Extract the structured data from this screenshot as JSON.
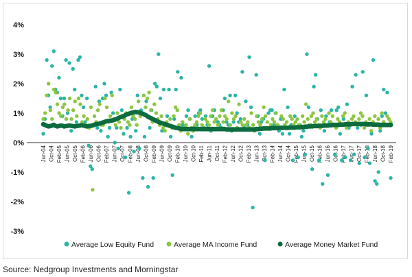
{
  "chart_data": {
    "type": "scatter",
    "ylim": [
      -3,
      4
    ],
    "y_ticks": [
      "4%",
      "3%",
      "2%",
      "1%",
      "0%",
      "-1%",
      "-2%",
      "-3%"
    ],
    "y_tick_values": [
      4,
      3,
      2,
      1,
      0,
      -1,
      -2,
      -3
    ],
    "x_tick_labels": [
      "Jun-04",
      "Oct-04",
      "Feb-05",
      "Jun-05",
      "Oct-05",
      "Feb-06",
      "Jun-06",
      "Oct-06",
      "Feb-07",
      "Jun-07",
      "Oct-07",
      "Feb-08",
      "Jun-08",
      "Oct-08",
      "Feb-09",
      "Jun-09",
      "Oct-09",
      "Feb-10",
      "Jun-10",
      "Oct-10",
      "Feb-11",
      "Jun-11",
      "Oct-11",
      "Feb-12",
      "Jun-12",
      "Oct-12",
      "Feb-13",
      "Jun-13",
      "Oct-13",
      "Feb-14",
      "Jun-14",
      "Oct-14",
      "Feb-15",
      "Jun-15",
      "Oct-15",
      "Feb-16",
      "Jun-16",
      "Oct-16",
      "Feb-17",
      "Jun-17",
      "Oct-17",
      "Feb-18",
      "Jun-18",
      "Oct-18",
      "Feb-19"
    ],
    "legend_position": "bottom",
    "grid": false,
    "series": [
      {
        "name": "Average Low Equity Fund",
        "color": "#2bb5a6",
        "values": [
          0.3,
          0.8,
          2.8,
          1.6,
          1.2,
          2.6,
          3.1,
          1.8,
          1.7,
          2.2,
          1.5,
          0.9,
          1.5,
          2.8,
          1.0,
          2.7,
          0.4,
          2.5,
          1.8,
          0.7,
          2.8,
          2.9,
          1.6,
          1.2,
          0.7,
          1.5,
          -0.1,
          -0.8,
          -0.9,
          0.6,
          1.9,
          0.5,
          1.4,
          0.4,
          1.5,
          2.0,
          1.6,
          0.2,
          0.5,
          1.7,
          1.0,
          0.0,
          0.5,
          -0.2,
          1.8,
          1.1,
          0.3,
          -0.5,
          0.5,
          -1.7,
          0.2,
          0.8,
          -0.3,
          0.4,
          1.6,
          -0.2,
          1.1,
          -1.2,
          0.2,
          1.4,
          -1.5,
          0.5,
          1.1,
          -1.2,
          2.0,
          1.9,
          3.0,
          1.5,
          0.4,
          1.8,
          0.6,
          0.9,
          1.8,
          0.2,
          -1.1,
          0.8,
          1.8,
          2.4,
          0.6,
          2.2,
          0.6,
          0.5,
          0.9,
          1.1,
          0.8,
          0.2,
          0.5,
          0.9,
          0.6,
          1.0,
          1.1,
          0.8,
          0.5,
          0.9,
          0.6,
          2.6,
          0.4,
          0.9,
          1.1,
          0.8,
          0.7,
          0.6,
          0.5,
          1.1,
          1.5,
          0.7,
          0.6,
          1.6,
          0.4,
          0.7,
          1.6,
          1.0,
          0.7,
          0.8,
          2.4,
          0.5,
          1.4,
          0.6,
          2.9,
          1.2,
          -2.2,
          0.4,
          2.3,
          0.9,
          0.3,
          0.7,
          0.8,
          -0.6,
          0.5,
          1.0,
          1.1,
          1.1,
          0.6,
          1.0,
          0.6,
          0.4,
          0.8,
          0.3,
          1.8,
          0.5,
          1.2,
          0.3,
          0.6,
          -0.6,
          0.9,
          0.5,
          -0.5,
          0.6,
          0.2,
          0.4,
          -0.4,
          3.0,
          1.2,
          0.6,
          -0.9,
          1.9,
          2.3,
          0.8,
          -0.6,
          1.1,
          -1.4,
          0.4,
          0.9,
          -1.1,
          0.7,
          1.1,
          0.6,
          -0.4,
          1.1,
          1.2,
          0.3,
          -0.6,
          0.8,
          -0.5,
          1.3,
          0.5,
          -0.6,
          1.9,
          -0.4,
          2.3,
          0.5,
          -0.7,
          0.6,
          2.4,
          -0.5,
          1.6,
          -0.2,
          -0.7,
          0.3,
          2.8,
          -1.3,
          -1.4,
          -1.0,
          0.4,
          0.9,
          1.8,
          1.0,
          1.7,
          0.6,
          -1.2
        ]
      },
      {
        "name": "Average MA Income Fund",
        "color": "#8cc63f",
        "values": [
          0.8,
          1.0,
          1.6,
          2.0,
          1.1,
          0.8,
          1.8,
          1.7,
          1.3,
          1.0,
          0.9,
          1.2,
          1.3,
          0.8,
          1.1,
          1.5,
          0.8,
          1.1,
          1.4,
          0.9,
          1.5,
          1.3,
          0.7,
          0.9,
          0.6,
          0.8,
          0.5,
          1.2,
          -1.6,
          0.9,
          0.7,
          1.1,
          1.3,
          0.6,
          0.6,
          1.5,
          1.2,
          0.7,
          0.9,
          1.6,
          0.8,
          0.6,
          1.0,
          0.7,
          0.5,
          0.9,
          0.8,
          1.0,
          0.7,
          0.6,
          1.2,
          0.9,
          0.8,
          0.6,
          1.4,
          0.9,
          1.0,
          1.6,
          1.2,
          1.5,
          1.7,
          1.1,
          0.7,
          1.3,
          1.0,
          0.8,
          0.6,
          0.9,
          0.5,
          0.4,
          0.7,
          0.6,
          0.8,
          0.5,
          0.9,
          1.2,
          1.1,
          0.6,
          0.4,
          0.7,
          0.5,
          0.6,
          0.3,
          0.8,
          0.5,
          0.4,
          0.6,
          0.7,
          0.9,
          1.0,
          0.6,
          0.5,
          0.8,
          0.7,
          0.6,
          0.9,
          1.1,
          0.7,
          0.8,
          0.6,
          0.9,
          1.1,
          0.7,
          0.9,
          0.8,
          1.4,
          0.6,
          1.0,
          0.8,
          0.9,
          0.5,
          1.3,
          0.7,
          0.6,
          0.8,
          0.6,
          0.7,
          0.5,
          1.0,
          0.6,
          0.4,
          0.9,
          0.7,
          0.6,
          0.8,
          1.2,
          0.9,
          0.7,
          0.5,
          0.6,
          0.8,
          0.7,
          1.0,
          0.6,
          0.5,
          0.9,
          0.8,
          0.6,
          0.7,
          0.5,
          0.9,
          0.8,
          0.6,
          0.7,
          0.8,
          0.6,
          0.5,
          0.9,
          0.7,
          1.3,
          0.8,
          0.6,
          0.9,
          1.0,
          0.7,
          0.8,
          0.6,
          0.5,
          0.9,
          0.7,
          0.8,
          0.6,
          1.0,
          0.7,
          0.9,
          0.6,
          0.5,
          0.8,
          0.7,
          0.6,
          0.9,
          1.0,
          0.5,
          0.7,
          0.6,
          0.8,
          0.9,
          0.7,
          0.6,
          0.8,
          1.0,
          0.9,
          0.5,
          0.7,
          0.6,
          0.8,
          0.4,
          0.7,
          0.9,
          0.6,
          0.8,
          0.5,
          1.0,
          0.7,
          0.6,
          0.9,
          0.8,
          0.7
        ]
      },
      {
        "name": "Average Money Market Fund",
        "color": "#0c6b3f",
        "values": [
          0.62,
          0.6,
          0.57,
          0.55,
          0.56,
          0.58,
          0.6,
          0.57,
          0.55,
          0.56,
          0.58,
          0.57,
          0.55,
          0.56,
          0.57,
          0.58,
          0.57,
          0.56,
          0.55,
          0.56,
          0.57,
          0.58,
          0.59,
          0.58,
          0.56,
          0.55,
          0.56,
          0.57,
          0.58,
          0.6,
          0.62,
          0.63,
          0.64,
          0.66,
          0.68,
          0.7,
          0.72,
          0.73,
          0.74,
          0.75,
          0.76,
          0.78,
          0.8,
          0.83,
          0.86,
          0.88,
          0.9,
          0.93,
          0.96,
          0.98,
          1.0,
          1.02,
          1.03,
          1.04,
          1.03,
          1.02,
          1.0,
          0.98,
          0.95,
          0.92,
          0.88,
          0.85,
          0.82,
          0.79,
          0.76,
          0.73,
          0.7,
          0.68,
          0.66,
          0.64,
          0.62,
          0.6,
          0.58,
          0.56,
          0.54,
          0.52,
          0.5,
          0.49,
          0.48,
          0.47,
          0.46,
          0.46,
          0.46,
          0.46,
          0.46,
          0.46,
          0.46,
          0.46,
          0.46,
          0.46,
          0.46,
          0.46,
          0.46,
          0.46,
          0.46,
          0.46,
          0.46,
          0.46,
          0.46,
          0.46,
          0.46,
          0.46,
          0.46,
          0.46,
          0.46,
          0.45,
          0.45,
          0.45,
          0.45,
          0.45,
          0.45,
          0.45,
          0.45,
          0.45,
          0.45,
          0.45,
          0.45,
          0.45,
          0.45,
          0.45,
          0.45,
          0.45,
          0.46,
          0.46,
          0.47,
          0.47,
          0.48,
          0.48,
          0.48,
          0.48,
          0.48,
          0.49,
          0.49,
          0.49,
          0.49,
          0.5,
          0.5,
          0.5,
          0.5,
          0.5,
          0.5,
          0.51,
          0.51,
          0.51,
          0.51,
          0.52,
          0.52,
          0.52,
          0.53,
          0.53,
          0.54,
          0.54,
          0.55,
          0.55,
          0.55,
          0.56,
          0.56,
          0.56,
          0.57,
          0.57,
          0.57,
          0.58,
          0.58,
          0.58,
          0.59,
          0.59,
          0.6,
          0.6,
          0.6,
          0.6,
          0.61,
          0.61,
          0.61,
          0.62,
          0.62,
          0.62,
          0.62,
          0.63,
          0.63,
          0.63,
          0.63,
          0.63,
          0.63,
          0.63,
          0.63,
          0.62,
          0.62,
          0.62,
          0.62,
          0.61,
          0.61,
          0.61,
          0.61,
          0.6,
          0.6,
          0.6,
          0.6,
          0.6,
          0.6,
          0.6
        ]
      }
    ]
  },
  "source": "Source: Nedgroup Investments and Morningstar"
}
